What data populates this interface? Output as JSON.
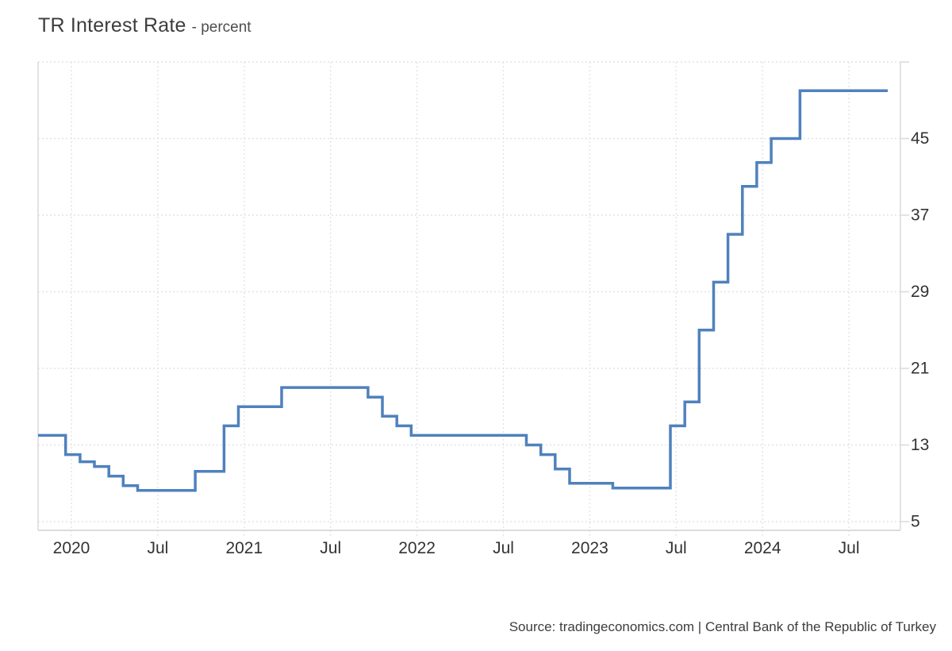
{
  "header": {
    "title": "TR Interest Rate",
    "subtitle": "- percent"
  },
  "footer": {
    "source": "Source: tradingeconomics.com | Central Bank of the Republic of Turkey"
  },
  "chart_data": {
    "type": "line",
    "step": true,
    "title": "TR Interest Rate",
    "subtitle": "- percent",
    "unit": "percent",
    "legend_position": "none",
    "grid": "dotted",
    "line_color": "#4f81bd",
    "grid_color": "#e3e3e3",
    "axis_color": "#dcdcdc",
    "tick_label_color": "#333333",
    "ylim": [
      5,
      53
    ],
    "y_ticks": [
      45,
      37,
      29,
      21,
      13,
      5
    ],
    "y_gridlines": [
      5,
      13,
      21,
      29,
      37,
      45,
      53
    ],
    "x_ticks": [
      {
        "label": "2020",
        "month": "2020-01"
      },
      {
        "label": "Jul",
        "month": "2020-07"
      },
      {
        "label": "2021",
        "month": "2021-01"
      },
      {
        "label": "Jul",
        "month": "2021-07"
      },
      {
        "label": "2022",
        "month": "2022-01"
      },
      {
        "label": "Jul",
        "month": "2022-07"
      },
      {
        "label": "2023",
        "month": "2023-01"
      },
      {
        "label": "Jul",
        "month": "2023-07"
      },
      {
        "label": "2024",
        "month": "2024-01"
      },
      {
        "label": "Jul",
        "month": "2024-07"
      }
    ],
    "series": [
      {
        "name": "TR Interest Rate",
        "unit": "percent",
        "points": [
          [
            "2019-10",
            14
          ],
          [
            "2019-12",
            12
          ],
          [
            "2020-01",
            11.25
          ],
          [
            "2020-02",
            10.75
          ],
          [
            "2020-03",
            9.75
          ],
          [
            "2020-04",
            8.75
          ],
          [
            "2020-05",
            8.25
          ],
          [
            "2020-09",
            10.25
          ],
          [
            "2020-11",
            15
          ],
          [
            "2020-12",
            17
          ],
          [
            "2021-03",
            19
          ],
          [
            "2021-09",
            18
          ],
          [
            "2021-10",
            16
          ],
          [
            "2021-11",
            15
          ],
          [
            "2021-12",
            14
          ],
          [
            "2022-08",
            13
          ],
          [
            "2022-09",
            12
          ],
          [
            "2022-10",
            10.5
          ],
          [
            "2022-11",
            9
          ],
          [
            "2023-02",
            8.5
          ],
          [
            "2023-06",
            15
          ],
          [
            "2023-07",
            17.5
          ],
          [
            "2023-08",
            25
          ],
          [
            "2023-09",
            30
          ],
          [
            "2023-10",
            35
          ],
          [
            "2023-11",
            40
          ],
          [
            "2023-12",
            42.5
          ],
          [
            "2024-01",
            45
          ],
          [
            "2024-03",
            50
          ],
          [
            "2024-10",
            50
          ]
        ]
      }
    ]
  }
}
